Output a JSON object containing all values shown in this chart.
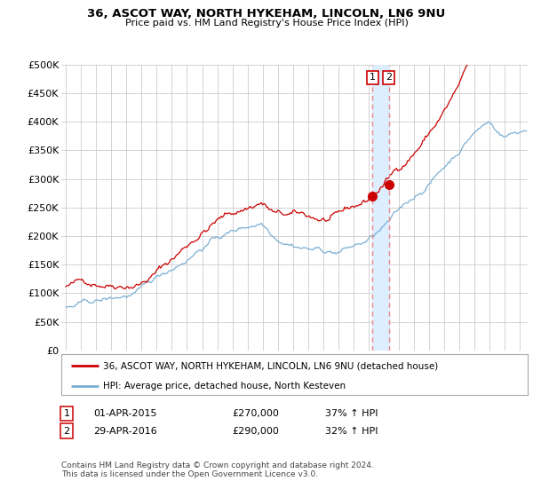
{
  "title": "36, ASCOT WAY, NORTH HYKEHAM, LINCOLN, LN6 9NU",
  "subtitle": "Price paid vs. HM Land Registry's House Price Index (HPI)",
  "background_color": "#ffffff",
  "grid_color": "#cccccc",
  "red_line_color": "#cc0000",
  "blue_line_color": "#7aafd4",
  "vline_color": "#ee8888",
  "vspan_color": "#ddeeff",
  "legend_label_red": "36, ASCOT WAY, NORTH HYKEHAM, LINCOLN, LN6 9NU (detached house)",
  "legend_label_blue": "HPI: Average price, detached house, North Kesteven",
  "transaction1_label": "1",
  "transaction1_date": "01-APR-2015",
  "transaction1_price": "£270,000",
  "transaction1_hpi": "37% ↑ HPI",
  "transaction2_label": "2",
  "transaction2_date": "29-APR-2016",
  "transaction2_price": "£290,000",
  "transaction2_hpi": "32% ↑ HPI",
  "footnote": "Contains HM Land Registry data © Crown copyright and database right 2024.\nThis data is licensed under the Open Government Licence v3.0.",
  "ylim": [
    0,
    500000
  ],
  "yticks": [
    0,
    50000,
    100000,
    150000,
    200000,
    250000,
    300000,
    350000,
    400000,
    450000,
    500000
  ],
  "ytick_labels": [
    "£0",
    "£50K",
    "£100K",
    "£150K",
    "£200K",
    "£250K",
    "£300K",
    "£350K",
    "£400K",
    "£450K",
    "£500K"
  ],
  "xlim_min": 1994.7,
  "xlim_max": 2025.5,
  "vline_x1": 2015.25,
  "vline_x2": 2016.33,
  "marker1_x": 2015.25,
  "marker1_y": 270000,
  "marker2_x": 2016.33,
  "marker2_y": 290000
}
